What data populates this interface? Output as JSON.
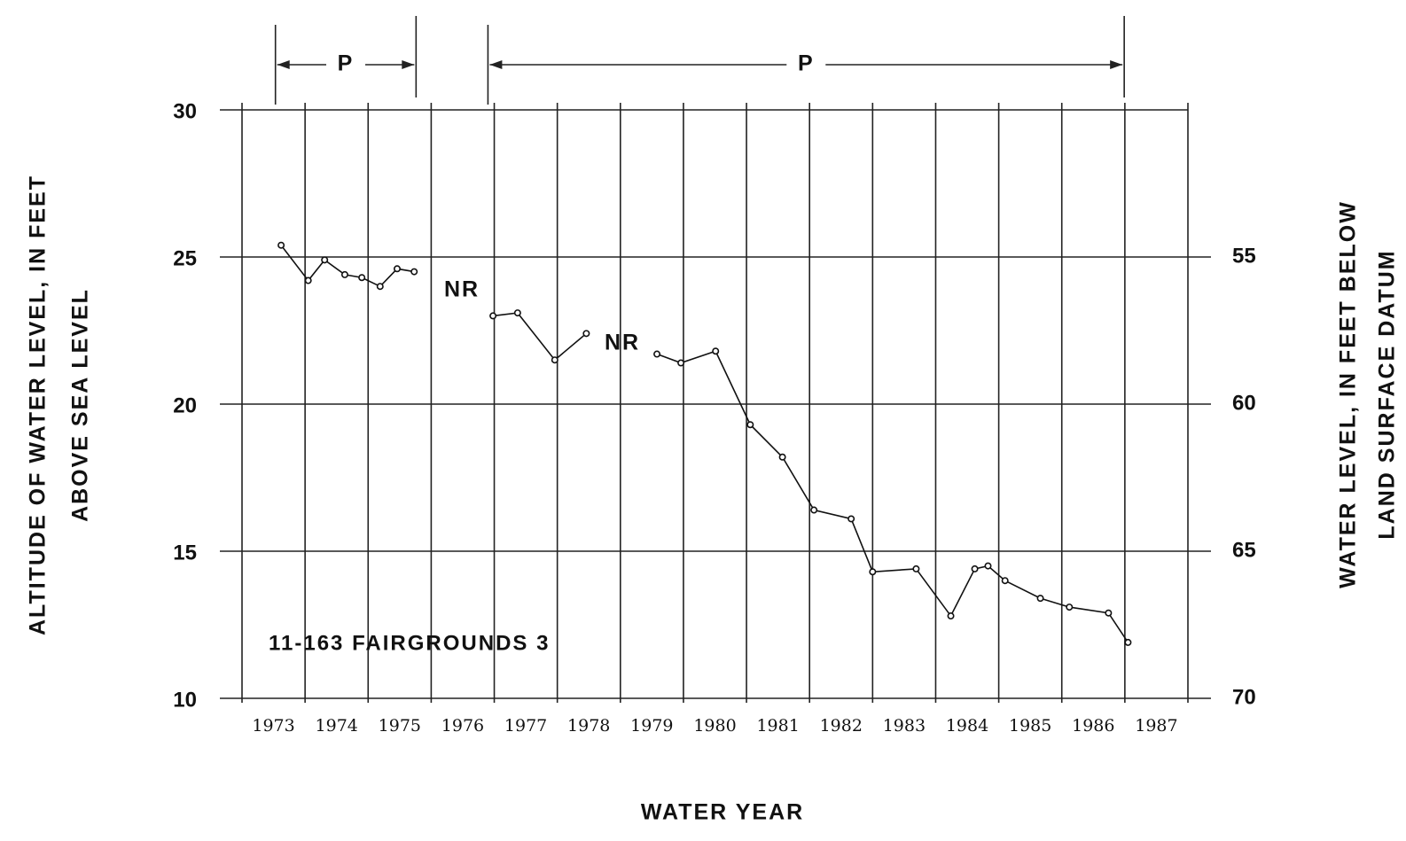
{
  "chart_data": {
    "type": "line",
    "title": "11-163 FAIRGROUNDS 3",
    "xlabel": "WATER YEAR",
    "ylabel": [
      "ALTITUDE OF WATER LEVEL, IN FEET",
      "ABOVE SEA LEVEL"
    ],
    "y2label": [
      "WATER LEVEL, IN FEET BELOW",
      "LAND SURFACE DATUM"
    ],
    "categories": [
      "1973",
      "1974",
      "1975",
      "1976",
      "1977",
      "1978",
      "1979",
      "1980",
      "1981",
      "1982",
      "1983",
      "1984",
      "1985",
      "1986",
      "1987"
    ],
    "xlim": [
      1973,
      1988
    ],
    "ylim": [
      10,
      30
    ],
    "yticks": [
      10,
      15,
      20,
      25,
      30
    ],
    "y2lim": [
      70,
      50
    ],
    "y2ticks": [
      55,
      60,
      65,
      70
    ],
    "grid": true,
    "series": [
      {
        "color": "#111111",
        "x": [
          1973.62,
          1974.05,
          1974.31,
          1974.63,
          1974.9,
          1975.19,
          1975.46,
          1975.73,
          null,
          1976.98,
          1977.37,
          1977.96,
          1978.46,
          null,
          1979.58,
          1979.96,
          1980.51,
          1981.06,
          1981.57,
          1982.07,
          1982.66,
          1983.0,
          1983.69,
          1984.24,
          1984.62,
          1984.83,
          1985.1,
          1985.66,
          1986.12,
          1986.74,
          1987.05
        ],
        "values": [
          25.4,
          24.2,
          24.9,
          24.4,
          24.3,
          24.0,
          24.6,
          24.5,
          null,
          23.0,
          23.1,
          21.5,
          22.4,
          null,
          21.7,
          21.4,
          21.8,
          19.3,
          18.2,
          16.4,
          16.1,
          14.3,
          14.4,
          12.8,
          14.4,
          14.5,
          14.0,
          13.4,
          13.1,
          12.9,
          11.9
        ]
      }
    ],
    "annotations": [
      {
        "text": "P",
        "x": [
          1973.53,
          1975.76
        ]
      },
      {
        "text": "P",
        "x": [
          1976.9,
          1986.99
        ]
      },
      {
        "text": "NR"
      },
      {
        "text": "NR"
      }
    ]
  }
}
